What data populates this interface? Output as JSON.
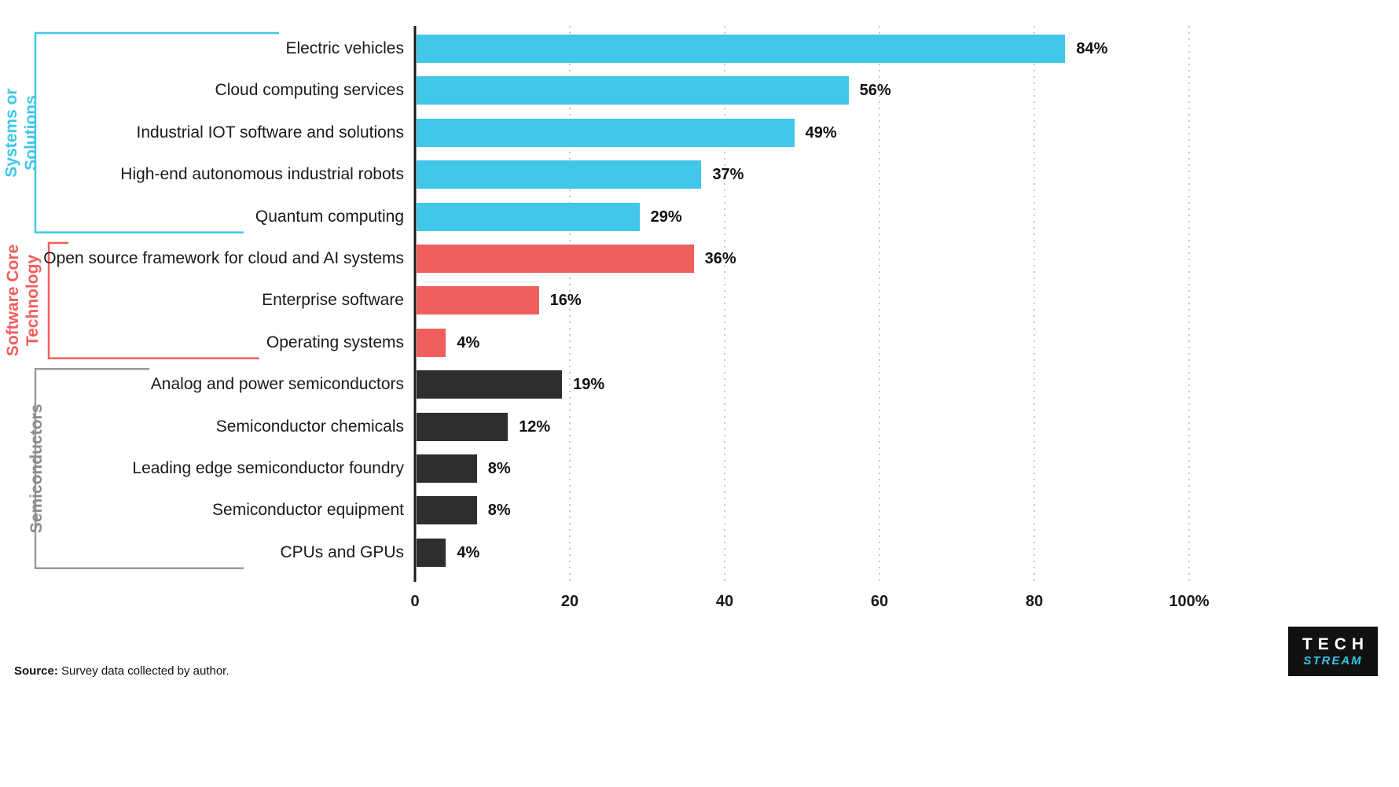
{
  "chart_data": {
    "type": "bar",
    "orientation": "horizontal",
    "title": "",
    "xlabel": "",
    "ylabel": "",
    "xlim": [
      0,
      100
    ],
    "grid": "dotted-vertical",
    "x_tick_values": [
      0,
      20,
      40,
      60,
      80,
      100
    ],
    "x_tick_labels": [
      "0",
      "20",
      "40",
      "60",
      "80",
      "100%"
    ],
    "groups": [
      {
        "name": "Systems or Solutions",
        "name_lines": "Systems or\nSolutions",
        "color": "#41c7e9",
        "label_color": "#41c7e9",
        "items": [
          {
            "label": "Electric vehicles",
            "value": 84,
            "value_label": "84%"
          },
          {
            "label": "Cloud computing services",
            "value": 56,
            "value_label": "56%"
          },
          {
            "label": "Industrial IOT software and solutions",
            "value": 49,
            "value_label": "49%"
          },
          {
            "label": "High-end autonomous industrial robots",
            "value": 37,
            "value_label": "37%"
          },
          {
            "label": "Quantum computing",
            "value": 29,
            "value_label": "29%"
          }
        ]
      },
      {
        "name": "Software Core Technology",
        "name_lines": "Software Core\nTechnology",
        "color": "#f15f5d",
        "label_color": "#f15f5d",
        "items": [
          {
            "label": "Open source framework for cloud and AI systems",
            "value": 36,
            "value_label": "36%"
          },
          {
            "label": "Enterprise software",
            "value": 16,
            "value_label": "16%"
          },
          {
            "label": "Operating systems",
            "value": 4,
            "value_label": "4%"
          }
        ]
      },
      {
        "name": "Semiconductors",
        "name_lines": "Semiconductors",
        "color": "#2e2e2e",
        "label_color": "#8c8c8c",
        "items": [
          {
            "label": "Analog and power semiconductors",
            "value": 19,
            "value_label": "19%"
          },
          {
            "label": "Semiconductor chemicals",
            "value": 12,
            "value_label": "12%"
          },
          {
            "label": "Leading edge semiconductor foundry",
            "value": 8,
            "value_label": "8%"
          },
          {
            "label": "Semiconductor equipment",
            "value": 8,
            "value_label": "8%"
          },
          {
            "label": "CPUs and GPUs",
            "value": 4,
            "value_label": "4%"
          }
        ]
      }
    ]
  },
  "source": {
    "prefix": "Source:",
    "text": " Survey data collected by author."
  },
  "logo": {
    "line1": "TECH",
    "line2": "STREAM"
  }
}
